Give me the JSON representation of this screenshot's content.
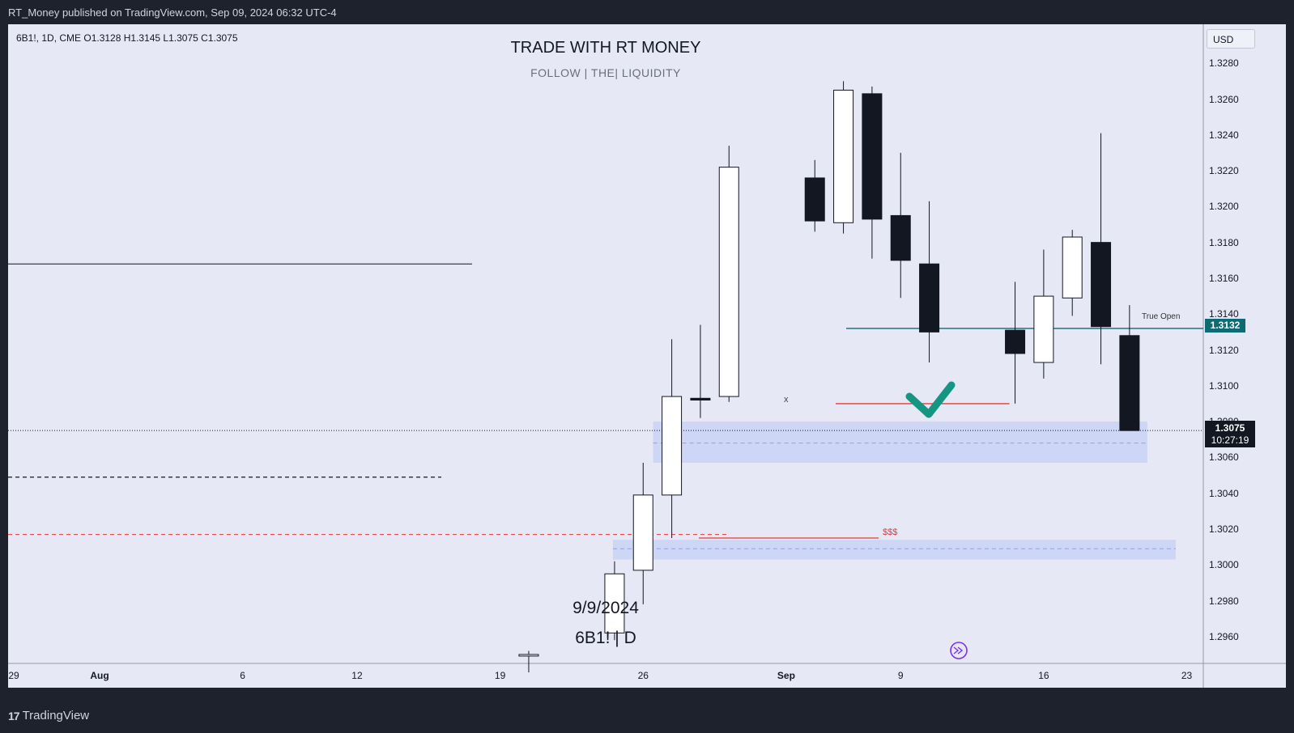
{
  "header": {
    "published": "RT_Money published on TradingView.com, Sep 09, 2024 06:32 UTC-4"
  },
  "footer": {
    "brand": "TradingView",
    "brand_mark": "17"
  },
  "legend": {
    "ohlc": "6B1!, 1D, CME  O1.3128  H1.3145  L1.3075  C1.3075"
  },
  "annotations": {
    "title": "TRADE WITH RT MONEY",
    "subtitle": "FOLLOW  |  THE|  LIQUIDITY",
    "date_note": "9/9/2024",
    "symbol_note": "6B1! | D",
    "true_open_label": "True Open",
    "true_open_value": "1.3132",
    "last_price": "1.3075",
    "countdown": "10:27:19",
    "x_mark": "x",
    "liquidity_mark": "$$$",
    "check_icon": "checkmark-icon",
    "replay_icon": "replay-icon"
  },
  "colors": {
    "background": "#e6e8f5",
    "bull_fill": "#ffffff",
    "bear_fill": "#131722",
    "zone": "#b8c6f3",
    "true_open_line": "#0e6a73",
    "red_line": "#e53935",
    "check": "#149683"
  },
  "chart_data": {
    "type": "candlestick",
    "currency": "USD",
    "y_ticks": [
      "1.3280",
      "1.3260",
      "1.3240",
      "1.3220",
      "1.3200",
      "1.3180",
      "1.3160",
      "1.3140",
      "1.3120",
      "1.3100",
      "1.3080",
      "1.3060",
      "1.3040",
      "1.3020",
      "1.3000",
      "1.2980",
      "1.2960"
    ],
    "x_ticks": [
      {
        "label": "29",
        "day": 0,
        "bold": false
      },
      {
        "label": "Aug",
        "day": 3,
        "bold": true
      },
      {
        "label": "6",
        "day": 8,
        "bold": false
      },
      {
        "label": "12",
        "day": 12,
        "bold": false
      },
      {
        "label": "19",
        "day": 17,
        "bold": false
      },
      {
        "label": "26",
        "day": 22,
        "bold": false
      },
      {
        "label": "Sep",
        "day": 27,
        "bold": true
      },
      {
        "label": "9",
        "day": 31,
        "bold": false
      },
      {
        "label": "16",
        "day": 36,
        "bold": false
      },
      {
        "label": "23",
        "day": 41,
        "bold": false
      }
    ],
    "ylim": [
      1.2945,
      1.3295
    ],
    "candles": [
      {
        "date": "2024-08-16",
        "o": 1.295,
        "h": 1.2952,
        "l": 1.294,
        "c": 1.295
      },
      {
        "date": "2024-08-19",
        "o": 1.2962,
        "h": 1.3002,
        "l": 1.2958,
        "c": 1.2995
      },
      {
        "date": "2024-08-20",
        "o": 1.2997,
        "h": 1.3057,
        "l": 1.2978,
        "c": 1.3039
      },
      {
        "date": "2024-08-21",
        "o": 1.3039,
        "h": 1.3126,
        "l": 1.3015,
        "c": 1.3094
      },
      {
        "date": "2024-08-22",
        "o": 1.3093,
        "h": 1.3134,
        "l": 1.3082,
        "c": 1.3092
      },
      {
        "date": "2024-08-23",
        "o": 1.3094,
        "h": 1.3234,
        "l": 1.3091,
        "c": 1.3222
      },
      {
        "date": "2024-08-26",
        "o": 1.3216,
        "h": 1.3226,
        "l": 1.3186,
        "c": 1.3192
      },
      {
        "date": "2024-08-27",
        "o": 1.3191,
        "h": 1.327,
        "l": 1.3185,
        "c": 1.3265
      },
      {
        "date": "2024-08-28",
        "o": 1.3263,
        "h": 1.3267,
        "l": 1.3171,
        "c": 1.3193
      },
      {
        "date": "2024-08-29",
        "o": 1.3195,
        "h": 1.323,
        "l": 1.3149,
        "c": 1.317
      },
      {
        "date": "2024-08-30",
        "o": 1.3168,
        "h": 1.3203,
        "l": 1.3113,
        "c": 1.313
      },
      {
        "date": "2024-09-02",
        "o": 1.3131,
        "h": 1.3158,
        "l": 1.309,
        "c": 1.3118
      },
      {
        "date": "2024-09-03",
        "o": 1.3113,
        "h": 1.3176,
        "l": 1.3104,
        "c": 1.315
      },
      {
        "date": "2024-09-04",
        "o": 1.3149,
        "h": 1.3187,
        "l": 1.3139,
        "c": 1.3183
      },
      {
        "date": "2024-09-05",
        "o": 1.318,
        "h": 1.3241,
        "l": 1.3112,
        "c": 1.3133
      },
      {
        "date": "2024-09-06",
        "o": 1.3128,
        "h": 1.3145,
        "l": 1.3075,
        "c": 1.3075
      }
    ],
    "levels": {
      "true_open": 1.3132,
      "last_price": 1.3075,
      "solid_black": 1.3168,
      "dashed_black": 1.3049,
      "dashed_red": 1.3017,
      "liquidity_red": 1.3015,
      "x_line": 1.309
    },
    "zones": [
      {
        "top": 1.308,
        "bottom": 1.3057,
        "mid": 1.3068
      },
      {
        "top": 1.3014,
        "bottom": 1.3003,
        "mid": 1.3009
      }
    ]
  }
}
